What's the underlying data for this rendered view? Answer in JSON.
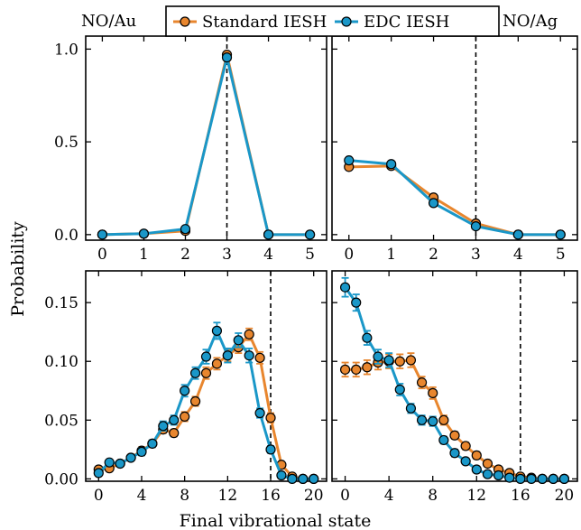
{
  "chart_data": {
    "type": "line",
    "xlabel": "Final vibrational state",
    "ylabel": "Probability",
    "legend": {
      "placement": "top-center",
      "entries": [
        {
          "name": "Standard IESH",
          "color": "#e8862e"
        },
        {
          "name": "EDC IESH",
          "color": "#1a97c8"
        }
      ]
    },
    "panels": [
      {
        "id": "au-v3",
        "title": "NO/Au",
        "xlim": [
          -0.4,
          5.4
        ],
        "ylim": [
          -0.03,
          1.07
        ],
        "xticks": [
          0,
          1,
          2,
          3,
          4,
          5
        ],
        "yticks": [
          0.0,
          0.5,
          1.0
        ],
        "ytick_labels": [
          "0.0",
          "0.5",
          "1.0"
        ],
        "initial_state": 3,
        "series": [
          {
            "name": "Standard IESH",
            "x": [
              0,
              1,
              2,
              3,
              4,
              5
            ],
            "y": [
              0.0,
              0.005,
              0.02,
              0.97,
              0.0,
              0.0
            ],
            "err": []
          },
          {
            "name": "EDC IESH",
            "x": [
              0,
              1,
              2,
              3,
              4,
              5
            ],
            "y": [
              0.0,
              0.005,
              0.03,
              0.955,
              0.0,
              0.0
            ],
            "err": []
          }
        ]
      },
      {
        "id": "ag-v3",
        "title": "NO/Ag",
        "xlim": [
          -0.4,
          5.4
        ],
        "ylim": [
          -0.03,
          1.07
        ],
        "xticks": [
          0,
          1,
          2,
          3,
          4,
          5
        ],
        "yticks": [
          0.0,
          0.5,
          1.0
        ],
        "ytick_labels": [],
        "initial_state": 3,
        "series": [
          {
            "name": "Standard IESH",
            "x": [
              0,
              1,
              2,
              3,
              4,
              5
            ],
            "y": [
              0.365,
              0.37,
              0.2,
              0.06,
              0.0,
              0.0
            ],
            "err": []
          },
          {
            "name": "EDC IESH",
            "x": [
              0,
              1,
              2,
              3,
              4,
              5
            ],
            "y": [
              0.4,
              0.38,
              0.17,
              0.045,
              0.0,
              0.0
            ],
            "err": []
          }
        ]
      },
      {
        "id": "au-v16",
        "title": "",
        "xlim": [
          -1.2,
          21.2
        ],
        "ylim": [
          -0.002,
          0.177
        ],
        "xticks": [
          0,
          4,
          8,
          12,
          16,
          20
        ],
        "yticks": [
          0.0,
          0.05,
          0.1,
          0.15
        ],
        "ytick_labels": [
          "0.00",
          "0.05",
          "0.10",
          "0.15"
        ],
        "initial_state": 16,
        "series": [
          {
            "name": "Standard IESH",
            "x": [
              0,
              1,
              2,
              3,
              4,
              5,
              6,
              7,
              8,
              9,
              10,
              11,
              12,
              13,
              14,
              15,
              16,
              17,
              18,
              19,
              20
            ],
            "y": [
              0.008,
              0.009,
              0.013,
              0.018,
              0.024,
              0.03,
              0.042,
              0.039,
              0.053,
              0.066,
              0.09,
              0.098,
              0.105,
              0.112,
              0.123,
              0.103,
              0.052,
              0.012,
              0.002,
              0.0,
              0.0
            ],
            "err": [
              0.002,
              0.002,
              0.002,
              0.002,
              0.003,
              0.003,
              0.003,
              0.003,
              0.004,
              0.004,
              0.005,
              0.005,
              0.005,
              0.005,
              0.005,
              0.005,
              0.004,
              0.002,
              0.001,
              0.0,
              0.0
            ]
          },
          {
            "name": "EDC IESH",
            "x": [
              0,
              1,
              2,
              3,
              4,
              5,
              6,
              7,
              8,
              9,
              10,
              11,
              12,
              13,
              14,
              15,
              16,
              17,
              18,
              19,
              20
            ],
            "y": [
              0.005,
              0.014,
              0.013,
              0.018,
              0.023,
              0.03,
              0.045,
              0.05,
              0.075,
              0.09,
              0.104,
              0.126,
              0.105,
              0.118,
              0.105,
              0.056,
              0.025,
              0.003,
              0.0,
              0.0,
              0.0
            ],
            "err": [
              0.002,
              0.002,
              0.002,
              0.002,
              0.003,
              0.003,
              0.004,
              0.004,
              0.005,
              0.005,
              0.006,
              0.007,
              0.006,
              0.006,
              0.006,
              0.004,
              0.003,
              0.001,
              0.0,
              0.0,
              0.0
            ]
          }
        ]
      },
      {
        "id": "ag-v16",
        "title": "",
        "xlim": [
          -1.2,
          21.2
        ],
        "ylim": [
          -0.002,
          0.177
        ],
        "xticks": [
          0,
          4,
          8,
          12,
          16,
          20
        ],
        "yticks": [
          0.0,
          0.05,
          0.1,
          0.15
        ],
        "ytick_labels": [],
        "initial_state": 16,
        "series": [
          {
            "name": "Standard IESH",
            "x": [
              0,
              1,
              2,
              3,
              4,
              5,
              6,
              7,
              8,
              9,
              10,
              11,
              12,
              13,
              14,
              15,
              16,
              17,
              18,
              19,
              20
            ],
            "y": [
              0.093,
              0.093,
              0.095,
              0.099,
              0.1,
              0.1,
              0.101,
              0.082,
              0.073,
              0.05,
              0.037,
              0.028,
              0.02,
              0.013,
              0.008,
              0.005,
              0.002,
              0.001,
              0.0,
              0.0,
              0.0
            ],
            "err": [
              0.006,
              0.006,
              0.006,
              0.006,
              0.006,
              0.006,
              0.006,
              0.005,
              0.005,
              0.004,
              0.003,
              0.003,
              0.003,
              0.002,
              0.002,
              0.001,
              0.001,
              0.0,
              0.0,
              0.0,
              0.0
            ]
          },
          {
            "name": "EDC IESH",
            "x": [
              0,
              1,
              2,
              3,
              4,
              5,
              6,
              7,
              8,
              9,
              10,
              11,
              12,
              13,
              14,
              15,
              16,
              17,
              18,
              19,
              20
            ],
            "y": [
              0.163,
              0.15,
              0.12,
              0.104,
              0.101,
              0.076,
              0.06,
              0.05,
              0.049,
              0.033,
              0.022,
              0.015,
              0.008,
              0.004,
              0.003,
              0.001,
              0.0,
              0.0,
              0.0,
              0.0,
              0.0
            ],
            "err": [
              0.008,
              0.007,
              0.006,
              0.006,
              0.006,
              0.005,
              0.004,
              0.004,
              0.004,
              0.003,
              0.003,
              0.002,
              0.002,
              0.001,
              0.001,
              0.0,
              0.0,
              0.0,
              0.0,
              0.0,
              0.0
            ]
          }
        ]
      }
    ]
  }
}
